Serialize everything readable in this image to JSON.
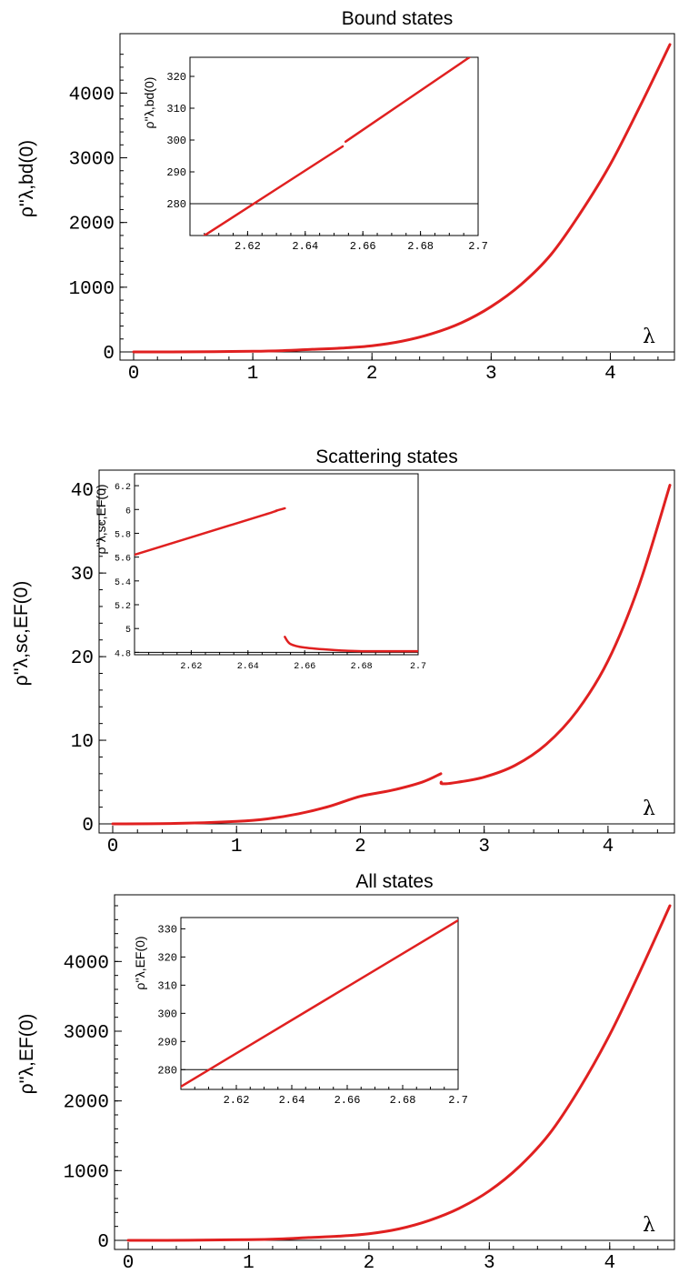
{
  "chart_data": [
    {
      "type": "line",
      "title": "Bound states",
      "ylabel": "ρ''λ,bd(0)",
      "xlabel": "λ",
      "xlim": [
        0,
        4.5
      ],
      "ylim": [
        0,
        4750
      ],
      "xticks": [
        "0",
        "1",
        "2",
        "3",
        "4"
      ],
      "yticks": [
        "0",
        "1000",
        "2000",
        "3000",
        "4000"
      ],
      "color": "#e02020",
      "series": [
        {
          "x": [
            0,
            0.5,
            1.0,
            1.25,
            1.5,
            1.75,
            2.0,
            2.25,
            2.5,
            2.75,
            3.0,
            3.25,
            3.5,
            3.75,
            4.0,
            4.25,
            4.5
          ],
          "values": [
            0,
            2,
            10,
            20,
            40,
            60,
            95,
            165,
            280,
            450,
            700,
            1040,
            1500,
            2150,
            2900,
            3800,
            4750
          ]
        }
      ],
      "inset": {
        "ylabel": "ρ''λ,bd(0)",
        "xlim": [
          2.6,
          2.7
        ],
        "ylim": [
          270,
          326
        ],
        "xticks": [
          "2.62",
          "2.64",
          "2.66",
          "2.68",
          "2.7"
        ],
        "yticks": [
          "280",
          "290",
          "300",
          "310",
          "320"
        ],
        "hline": 280,
        "segments": [
          {
            "x": [
              2.605,
              2.653
            ],
            "values": [
              270,
              298
            ]
          },
          {
            "x": [
              2.654,
              2.697
            ],
            "values": [
              299.5,
              326
            ]
          }
        ]
      }
    },
    {
      "type": "line",
      "title": "Scattering states",
      "ylabel": "ρ''λ,sc,EF(0)",
      "xlabel": "λ",
      "xlim": [
        0,
        4.5
      ],
      "ylim": [
        -0.4,
        41
      ],
      "xticks": [
        "0",
        "1",
        "2",
        "3",
        "4"
      ],
      "yticks": [
        "0",
        "10",
        "20",
        "30",
        "40"
      ],
      "color": "#e02020",
      "series": [
        {
          "x": [
            0,
            0.5,
            1.0,
            1.25,
            1.5,
            1.75,
            2.0,
            2.25,
            2.5,
            2.65
          ],
          "values": [
            0,
            0.05,
            0.3,
            0.6,
            1.2,
            2.1,
            3.3,
            4.0,
            5.0,
            6.0
          ]
        },
        {
          "x": [
            2.653,
            2.66,
            2.75,
            3.0,
            3.25,
            3.5,
            3.75,
            4.0,
            4.25,
            4.5
          ],
          "values": [
            5.0,
            4.8,
            4.9,
            5.6,
            7.0,
            9.5,
            13.5,
            19.5,
            28.5,
            40.5
          ]
        }
      ],
      "inset": {
        "ylabel": "ρ''λ,sc,EF(0)",
        "xlim": [
          2.6,
          2.7
        ],
        "ylim": [
          4.78,
          6.3
        ],
        "xticks": [
          "2.62",
          "2.64",
          "2.66",
          "2.68",
          "2.7"
        ],
        "yticks": [
          "4.8",
          "5",
          "5.2",
          "5.4",
          "5.6",
          "5.8",
          "6",
          "6.2"
        ],
        "hline": 4.8,
        "segments": [
          {
            "x": [
              2.6,
              2.645,
              2.65,
              2.653
            ],
            "values": [
              5.62,
              5.95,
              5.99,
              6.01
            ]
          },
          {
            "x": [
              2.653,
              2.655,
              2.66,
              2.67,
              2.68,
              2.7
            ],
            "values": [
              4.93,
              4.87,
              4.84,
              4.82,
              4.81,
              4.81
            ]
          }
        ]
      }
    },
    {
      "type": "line",
      "title": "All states",
      "ylabel": "ρ''λ,EF(0)",
      "xlabel": "λ",
      "xlim": [
        0,
        4.5
      ],
      "ylim": [
        0,
        4800
      ],
      "xticks": [
        "0",
        "1",
        "2",
        "3",
        "4"
      ],
      "yticks": [
        "0",
        "1000",
        "2000",
        "3000",
        "4000"
      ],
      "color": "#e02020",
      "series": [
        {
          "x": [
            0,
            0.5,
            1.0,
            1.25,
            1.5,
            1.75,
            2.0,
            2.25,
            2.5,
            2.75,
            3.0,
            3.25,
            3.5,
            3.75,
            4.0,
            4.25,
            4.5
          ],
          "values": [
            0,
            2,
            10,
            20,
            40,
            60,
            95,
            165,
            285,
            460,
            710,
            1060,
            1530,
            2180,
            2950,
            3850,
            4800
          ]
        }
      ],
      "inset": {
        "ylabel": "ρ''λ,EF(0)",
        "xlim": [
          2.6,
          2.7
        ],
        "ylim": [
          273,
          334
        ],
        "xticks": [
          "2.62",
          "2.64",
          "2.66",
          "2.68",
          "2.7"
        ],
        "yticks": [
          "280",
          "290",
          "300",
          "310",
          "320",
          "330"
        ],
        "hline": 280,
        "segments": [
          {
            "x": [
              2.6,
              2.7
            ],
            "values": [
              274,
              333
            ]
          }
        ]
      }
    }
  ]
}
